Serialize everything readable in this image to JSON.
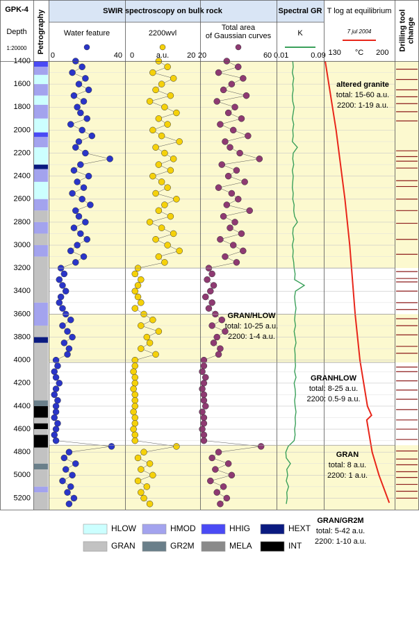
{
  "header": {
    "well": "GPK-4",
    "depth_label": "Depth",
    "scale": "1:20000",
    "swir_title": "SWIR spectroscopy on bulk rock"
  },
  "depth_axis": {
    "ylim": [
      1400,
      5300
    ],
    "yticks": [
      1400,
      1600,
      1800,
      2000,
      2200,
      2400,
      2600,
      2800,
      3000,
      3200,
      3400,
      3600,
      3800,
      4000,
      4200,
      4400,
      4600,
      4800,
      5000,
      5200
    ],
    "samples": [
      1400,
      1450,
      1500,
      1550,
      1600,
      1650,
      1700,
      1750,
      1800,
      1850,
      1900,
      1950,
      2000,
      2050,
      2100,
      2150,
      2200,
      2250,
      2300,
      2350,
      2400,
      2450,
      2500,
      2550,
      2600,
      2650,
      2700,
      2750,
      2800,
      2850,
      2900,
      2950,
      3000,
      3050,
      3100,
      3150,
      3200,
      3250,
      3300,
      3350,
      3400,
      3450,
      3500,
      3550,
      3600,
      3650,
      3700,
      3750,
      3800,
      3850,
      3900,
      3950,
      4000,
      4050,
      4100,
      4150,
      4200,
      4250,
      4300,
      4350,
      4400,
      4450,
      4500,
      4550,
      4600,
      4650,
      4700,
      4750,
      4800,
      4850,
      4900,
      4950,
      5000,
      5050,
      5100,
      5150,
      5200,
      5250
    ]
  },
  "chart_data": [
    {
      "type": "strip",
      "title": "Petrography",
      "intervals": [
        {
          "top": 1400,
          "bottom": 1450,
          "code": "HHIG"
        },
        {
          "top": 1450,
          "bottom": 1520,
          "code": "HMOD"
        },
        {
          "top": 1520,
          "bottom": 1600,
          "code": "HLOW"
        },
        {
          "top": 1600,
          "bottom": 1700,
          "code": "HMOD"
        },
        {
          "top": 1700,
          "bottom": 1780,
          "code": "HLOW"
        },
        {
          "top": 1780,
          "bottom": 1900,
          "code": "HMOD"
        },
        {
          "top": 1900,
          "bottom": 2020,
          "code": "HLOW"
        },
        {
          "top": 2020,
          "bottom": 2060,
          "code": "HHIG"
        },
        {
          "top": 2060,
          "bottom": 2150,
          "code": "HMOD"
        },
        {
          "top": 2150,
          "bottom": 2300,
          "code": "HLOW"
        },
        {
          "top": 2300,
          "bottom": 2340,
          "code": "HEXT"
        },
        {
          "top": 2340,
          "bottom": 2450,
          "code": "HMOD"
        },
        {
          "top": 2450,
          "bottom": 2600,
          "code": "HLOW"
        },
        {
          "top": 2600,
          "bottom": 2700,
          "code": "HMOD"
        },
        {
          "top": 2700,
          "bottom": 2800,
          "code": "GRAN"
        },
        {
          "top": 2800,
          "bottom": 2900,
          "code": "HMOD"
        },
        {
          "top": 2900,
          "bottom": 3000,
          "code": "GRAN"
        },
        {
          "top": 3000,
          "bottom": 3100,
          "code": "HMOD"
        },
        {
          "top": 3100,
          "bottom": 3500,
          "code": "GRAN"
        },
        {
          "top": 3500,
          "bottom": 3700,
          "code": "HMOD"
        },
        {
          "top": 3700,
          "bottom": 3800,
          "code": "GRAN"
        },
        {
          "top": 3800,
          "bottom": 3850,
          "code": "HEXT"
        },
        {
          "top": 3850,
          "bottom": 4350,
          "code": "GRAN"
        },
        {
          "top": 4350,
          "bottom": 4400,
          "code": "GR2M"
        },
        {
          "top": 4400,
          "bottom": 4500,
          "code": "INT"
        },
        {
          "top": 4500,
          "bottom": 4550,
          "code": "GRAN"
        },
        {
          "top": 4550,
          "bottom": 4600,
          "code": "INT"
        },
        {
          "top": 4600,
          "bottom": 4650,
          "code": "GRAN"
        },
        {
          "top": 4650,
          "bottom": 4760,
          "code": "INT"
        },
        {
          "top": 4760,
          "bottom": 4900,
          "code": "GRAN"
        },
        {
          "top": 4900,
          "bottom": 4950,
          "code": "GR2M"
        },
        {
          "top": 4950,
          "bottom": 5100,
          "code": "GRAN"
        },
        {
          "top": 5100,
          "bottom": 5150,
          "code": "HMOD"
        },
        {
          "top": 5150,
          "bottom": 5300,
          "code": "GRAN"
        }
      ]
    },
    {
      "type": "scatter",
      "title": "Water feature",
      "color": "#2a35c8",
      "xlim": [
        -2.5,
        44.3
      ],
      "xticks": [
        0,
        40
      ],
      "values": [
        14,
        18,
        12,
        20,
        16,
        22,
        13,
        19,
        15,
        17,
        21,
        11,
        18,
        24,
        16,
        14,
        20,
        35,
        17,
        13,
        22,
        15,
        19,
        12,
        18,
        23,
        14,
        16,
        20,
        13,
        17,
        21,
        15,
        11,
        19,
        14,
        5,
        7,
        4,
        6,
        8,
        5,
        4,
        6,
        8,
        11,
        6,
        9,
        12,
        7,
        10,
        9,
        2,
        3,
        1,
        2,
        4,
        2,
        1,
        3,
        2,
        2,
        1,
        3,
        2,
        1,
        2,
        36,
        10,
        7,
        14,
        8,
        12,
        6,
        11,
        9,
        13,
        10
      ]
    },
    {
      "type": "scatter",
      "title": "2200wvl",
      "unit": "a.u.",
      "color": "#f5d10a",
      "xlim": [
        -2.35,
        23
      ],
      "xticks": [
        0,
        20
      ],
      "values": [
        9,
        12,
        7,
        14,
        10,
        8,
        13,
        6,
        11,
        15,
        9,
        12,
        7,
        10,
        16,
        8,
        11,
        14,
        9,
        13,
        7,
        10,
        12,
        8,
        15,
        11,
        9,
        13,
        6,
        10,
        14,
        8,
        12,
        16,
        9,
        11,
        2,
        1,
        3,
        2,
        1,
        2,
        3,
        1,
        4,
        7,
        3,
        9,
        5,
        6,
        3,
        8,
        1,
        1,
        0.5,
        1,
        1,
        0.5,
        1,
        1,
        1,
        0.5,
        1,
        1,
        0.5,
        1,
        1,
        15,
        4,
        2,
        6,
        3,
        7,
        2,
        5,
        3,
        4,
        6
      ]
    },
    {
      "type": "scatter",
      "title_lines": [
        "Total area",
        "of Gaussian curves"
      ],
      "color": "#8e3a72",
      "xlim": [
        18.7,
        65.5
      ],
      "xticks": [
        20,
        60
      ],
      "values": [
        35,
        42,
        30,
        45,
        38,
        33,
        47,
        29,
        40,
        36,
        44,
        31,
        39,
        48,
        34,
        37,
        43,
        55,
        32,
        41,
        36,
        46,
        30,
        38,
        42,
        35,
        49,
        33,
        40,
        37,
        44,
        31,
        39,
        45,
        34,
        41,
        24,
        26,
        23,
        27,
        25,
        22,
        26,
        24,
        28,
        32,
        26,
        34,
        29,
        27,
        31,
        30,
        21,
        21,
        20,
        22,
        21,
        20,
        21,
        21,
        22,
        20,
        21,
        21,
        20,
        21,
        21,
        56,
        30,
        26,
        36,
        28,
        38,
        25,
        33,
        29,
        35,
        31
      ]
    },
    {
      "type": "line",
      "title": "Spectral GR",
      "legend": "K",
      "color": "#3aa05a",
      "xlim": [
        0,
        0.102
      ],
      "xticks": [
        0.01,
        0.09
      ],
      "values": [
        0.035,
        0.036,
        0.034,
        0.037,
        0.035,
        0.036,
        0.034,
        0.035,
        0.038,
        0.036,
        0.034,
        0.037,
        0.035,
        0.036,
        0.034,
        0.045,
        0.036,
        0.035,
        0.037,
        0.034,
        0.036,
        0.035,
        0.034,
        0.036,
        0.035,
        0.038,
        0.037,
        0.039,
        0.045,
        0.036,
        0.035,
        0.037,
        0.034,
        0.036,
        0.035,
        0.037,
        0.038,
        0.04,
        0.039,
        0.06,
        0.041,
        0.039,
        0.04,
        0.042,
        0.04,
        0.039,
        0.041,
        0.038,
        0.04,
        0.042,
        0.039,
        0.04,
        0.04,
        0.041,
        0.039,
        0.042,
        0.038,
        0.04,
        0.041,
        0.039,
        0.04,
        0.042,
        0.04,
        0.041,
        0.039,
        0.04,
        0.038,
        0.025,
        0.02,
        0.021,
        0.03,
        0.022,
        0.024,
        0.021,
        0.026,
        0.022,
        0.023,
        0.021
      ]
    },
    {
      "type": "line",
      "title": "T log at equilibrium",
      "legend": "7 jul 2004",
      "unit": "°C",
      "color": "#e8261a",
      "xlim": [
        114,
        218
      ],
      "xticks": [
        130,
        200
      ],
      "depths": [
        1400,
        2000,
        2600,
        3000,
        3600,
        4000,
        4400,
        4480,
        4520,
        4800,
        5000,
        5240
      ],
      "values": [
        116,
        132,
        145,
        152,
        160,
        167,
        178,
        184,
        177,
        185,
        195,
        210
      ]
    },
    {
      "type": "events",
      "title_lines": [
        "Drilling tool",
        "change"
      ],
      "color": "#8b1a1a",
      "depths": [
        1470,
        1560,
        1650,
        1710,
        1770,
        1840,
        1920,
        2180,
        2230,
        2270,
        2330,
        2440,
        2490,
        2600,
        2700,
        2810,
        2950,
        3080,
        3230,
        3290,
        3320,
        3400,
        3500,
        3560,
        3640,
        3700,
        3780,
        3880,
        3940,
        4060,
        4100,
        4180,
        4260,
        4340,
        4430,
        4520,
        4600,
        4690,
        4790,
        4860,
        4910,
        4970,
        5020,
        5080,
        5140,
        5200
      ]
    }
  ],
  "zones": [
    {
      "top": 1400,
      "bottom": 3200,
      "fill": "#fcf9cf",
      "title": "altered granite",
      "lines": [
        "total: 15-60 a.u.",
        "2200: 1-19 a.u."
      ]
    },
    {
      "top": 3200,
      "bottom": 3600,
      "fill": "#ffffff",
      "title": "GRAN/HLOW",
      "lines": [
        "total: 10-25 a.u.",
        "2200: 1-4 a.u."
      ]
    },
    {
      "top": 3600,
      "bottom": 4020,
      "fill": "#fcf9cf",
      "title": "GRANHLOW",
      "lines": [
        "total: 8-25 a.u.",
        "2200: 0.5-9 a.u."
      ]
    },
    {
      "top": 4020,
      "bottom": 4740,
      "fill": "#ffffff",
      "title": "GRAN",
      "lines": [
        "total: 8 a.u.",
        "2200: 1 a.u."
      ]
    },
    {
      "top": 4740,
      "bottom": 5300,
      "fill": "#fcf9cf",
      "title": "GRAN/GR2M",
      "lines": [
        "total: 5-42 a.u.",
        "2200: 1-10 a.u."
      ]
    }
  ],
  "lithology": [
    {
      "code": "HLOW",
      "color": "#ccffff"
    },
    {
      "code": "HMOD",
      "color": "#a3a3ee"
    },
    {
      "code": "HHIG",
      "color": "#4a4af5"
    },
    {
      "code": "HEXT",
      "color": "#0a1a80"
    },
    {
      "code": "GRAN",
      "color": "#c2c2c2"
    },
    {
      "code": "GR2M",
      "color": "#6a7f8a"
    },
    {
      "code": "MELA",
      "color": "#8a8a8a"
    },
    {
      "code": "INT",
      "color": "#000000"
    }
  ]
}
